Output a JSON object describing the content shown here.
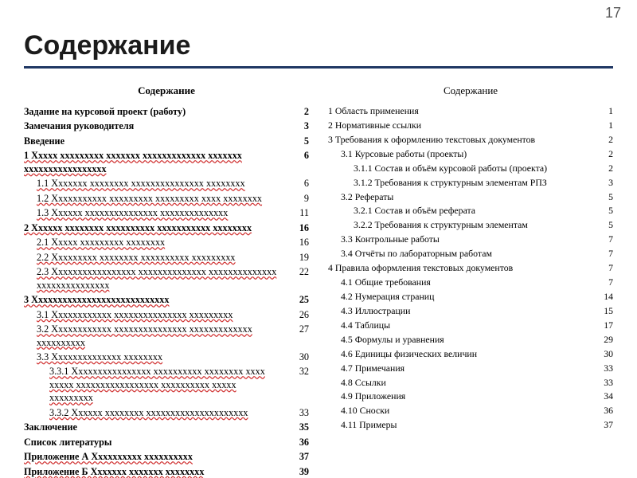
{
  "page_number": "17",
  "slide_title": "Содержание",
  "left": {
    "heading": "Содержание",
    "entries": [
      {
        "label": "Задание на курсовой проект (работу)",
        "page": "2",
        "indent": 0,
        "bold": true,
        "spell": false
      },
      {
        "label": "Замечания руководителя",
        "page": "3",
        "indent": 0,
        "bold": true,
        "spell": false
      },
      {
        "label": "Введение",
        "page": "5",
        "indent": 0,
        "bold": true,
        "spell": false
      },
      {
        "label": "1 Xxxxx xxxxxxxxx xxxxxxx xxxxxxxxxxxxx xxxxxxx xxxxxxxxxxxxxxxxx",
        "page": "6",
        "indent": 0,
        "bold": true,
        "spell": true
      },
      {
        "label": "1.1 Xxxxxxx xxxxxxxx xxxxxxxxxxxxxxx xxxxxxxx",
        "page": "6",
        "indent": 1,
        "bold": false,
        "spell": true
      },
      {
        "label": "1.2 Xxxxxxxxxxx xxxxxxxxx xxxxxxxxx xxxx xxxxxxxx",
        "page": "9",
        "indent": 1,
        "bold": false,
        "spell": true
      },
      {
        "label": "1.3 Xxxxxx xxxxxxxxxxxxxxx xxxxxxxxxxxxxx",
        "page": "11",
        "indent": 1,
        "bold": false,
        "spell": true
      },
      {
        "label": "2 Xxxxxx xxxxxxxx xxxxxxxxxx xxxxxxxxxxx xxxxxxxx",
        "page": "16",
        "indent": 0,
        "bold": true,
        "spell": true
      },
      {
        "label": "2.1 Xxxxx xxxxxxxxx xxxxxxxx",
        "page": "16",
        "indent": 1,
        "bold": false,
        "spell": true
      },
      {
        "label": "2.2 Xxxxxxxxx xxxxxxxx xxxxxxxxxx xxxxxxxxx",
        "page": "19",
        "indent": 1,
        "bold": false,
        "spell": true
      },
      {
        "label": "2.3 Xxxxxxxxxxxxxxxxx xxxxxxxxxxxxxx xxxxxxxxxxxxxx xxxxxxxxxxxxxxx",
        "page": "22",
        "indent": 1,
        "bold": false,
        "spell": true
      },
      {
        "label": "3 Xxxxxxxxxxxxxxxxxxxxxxxxxxxx",
        "page": "25",
        "indent": 0,
        "bold": true,
        "spell": true
      },
      {
        "label": "3.1 Xxxxxxxxxxxx xxxxxxxxxxxxxxx xxxxxxxxx",
        "page": "26",
        "indent": 1,
        "bold": false,
        "spell": true
      },
      {
        "label": "3.2 Xxxxxxxxxxxx xxxxxxxxxxxxxxx xxxxxxxxxxxxx xxxxxxxxxx",
        "page": "27",
        "indent": 1,
        "bold": false,
        "spell": true
      },
      {
        "label": "3.3 Xxxxxxxxxxxxxx xxxxxxxx",
        "page": "30",
        "indent": 1,
        "bold": false,
        "spell": true
      },
      {
        "label": "3.3.1 Xxxxxxxxxxxxxxxx xxxxxxxxxx xxxxxxxx xxxx xxxxx xxxxxxxxxxxxxxxxx xxxxxxxxxx xxxxx xxxxxxxxx",
        "page": "32",
        "indent": 2,
        "bold": false,
        "spell": true
      },
      {
        "label": "3.3.2 Xxxxxx xxxxxxxx xxxxxxxxxxxxxxxxxxxxx",
        "page": "33",
        "indent": 2,
        "bold": false,
        "spell": true
      },
      {
        "label": "Заключение",
        "page": "35",
        "indent": 0,
        "bold": true,
        "spell": false
      },
      {
        "label": "Список литературы",
        "page": "36",
        "indent": 0,
        "bold": true,
        "spell": false
      },
      {
        "label": "Приложение А Xxxxxxxxxx xxxxxxxxxx",
        "page": "37",
        "indent": 0,
        "bold": true,
        "spell": true
      },
      {
        "label": "Приложение Б Xxxxxxx xxxxxxx xxxxxxxx",
        "page": "39",
        "indent": 0,
        "bold": true,
        "spell": true
      }
    ]
  },
  "right": {
    "heading": "Содержание",
    "entries": [
      {
        "label": "1 Область применения",
        "page": "1",
        "indent": 0,
        "bold": false,
        "spell": false
      },
      {
        "label": "2 Нормативные ссылки",
        "page": "1",
        "indent": 0,
        "bold": false,
        "spell": false
      },
      {
        "label": "3 Требования к оформлению текстовых документов",
        "page": "2",
        "indent": 0,
        "bold": false,
        "spell": false
      },
      {
        "label": "3.1 Курсовые работы (проекты)",
        "page": "2",
        "indent": 1,
        "bold": false,
        "spell": false
      },
      {
        "label": "3.1.1 Состав и объём курсовой работы (проекта)",
        "page": "2",
        "indent": 2,
        "bold": false,
        "spell": false
      },
      {
        "label": "3.1.2 Требования к структурным элементам РПЗ",
        "page": "3",
        "indent": 2,
        "bold": false,
        "spell": false
      },
      {
        "label": "3.2 Рефераты",
        "page": "5",
        "indent": 1,
        "bold": false,
        "spell": false
      },
      {
        "label": "3.2.1 Состав и объём реферата",
        "page": "5",
        "indent": 2,
        "bold": false,
        "spell": false
      },
      {
        "label": "3.2.2 Требования к структурным элементам",
        "page": "5",
        "indent": 2,
        "bold": false,
        "spell": false
      },
      {
        "label": "3.3 Контрольные работы",
        "page": "7",
        "indent": 1,
        "bold": false,
        "spell": false
      },
      {
        "label": "3.4 Отчёты по лабораторным работам",
        "page": "7",
        "indent": 1,
        "bold": false,
        "spell": false
      },
      {
        "label": "4 Правила оформления текстовых документов",
        "page": "7",
        "indent": 0,
        "bold": false,
        "spell": false
      },
      {
        "label": "4.1 Общие требования",
        "page": "7",
        "indent": 1,
        "bold": false,
        "spell": false
      },
      {
        "label": "4.2 Нумерация страниц",
        "page": "14",
        "indent": 1,
        "bold": false,
        "spell": false
      },
      {
        "label": "4.3 Иллюстрации",
        "page": "15",
        "indent": 1,
        "bold": false,
        "spell": false
      },
      {
        "label": "4.4 Таблицы",
        "page": "17",
        "indent": 1,
        "bold": false,
        "spell": false
      },
      {
        "label": "4.5 Формулы и уравнения",
        "page": "29",
        "indent": 1,
        "bold": false,
        "spell": false
      },
      {
        "label": "4.6 Единицы физических величин",
        "page": "30",
        "indent": 1,
        "bold": false,
        "spell": false
      },
      {
        "label": "4.7 Примечания",
        "page": "33",
        "indent": 1,
        "bold": false,
        "spell": false
      },
      {
        "label": "4.8 Ссылки",
        "page": "33",
        "indent": 1,
        "bold": false,
        "spell": false
      },
      {
        "label": "4.9 Приложения",
        "page": "34",
        "indent": 1,
        "bold": false,
        "spell": false
      },
      {
        "label": "4.10 Сноски",
        "page": "36",
        "indent": 1,
        "bold": false,
        "spell": false
      },
      {
        "label": "4.11 Примеры",
        "page": "37",
        "indent": 1,
        "bold": false,
        "spell": false
      }
    ]
  }
}
